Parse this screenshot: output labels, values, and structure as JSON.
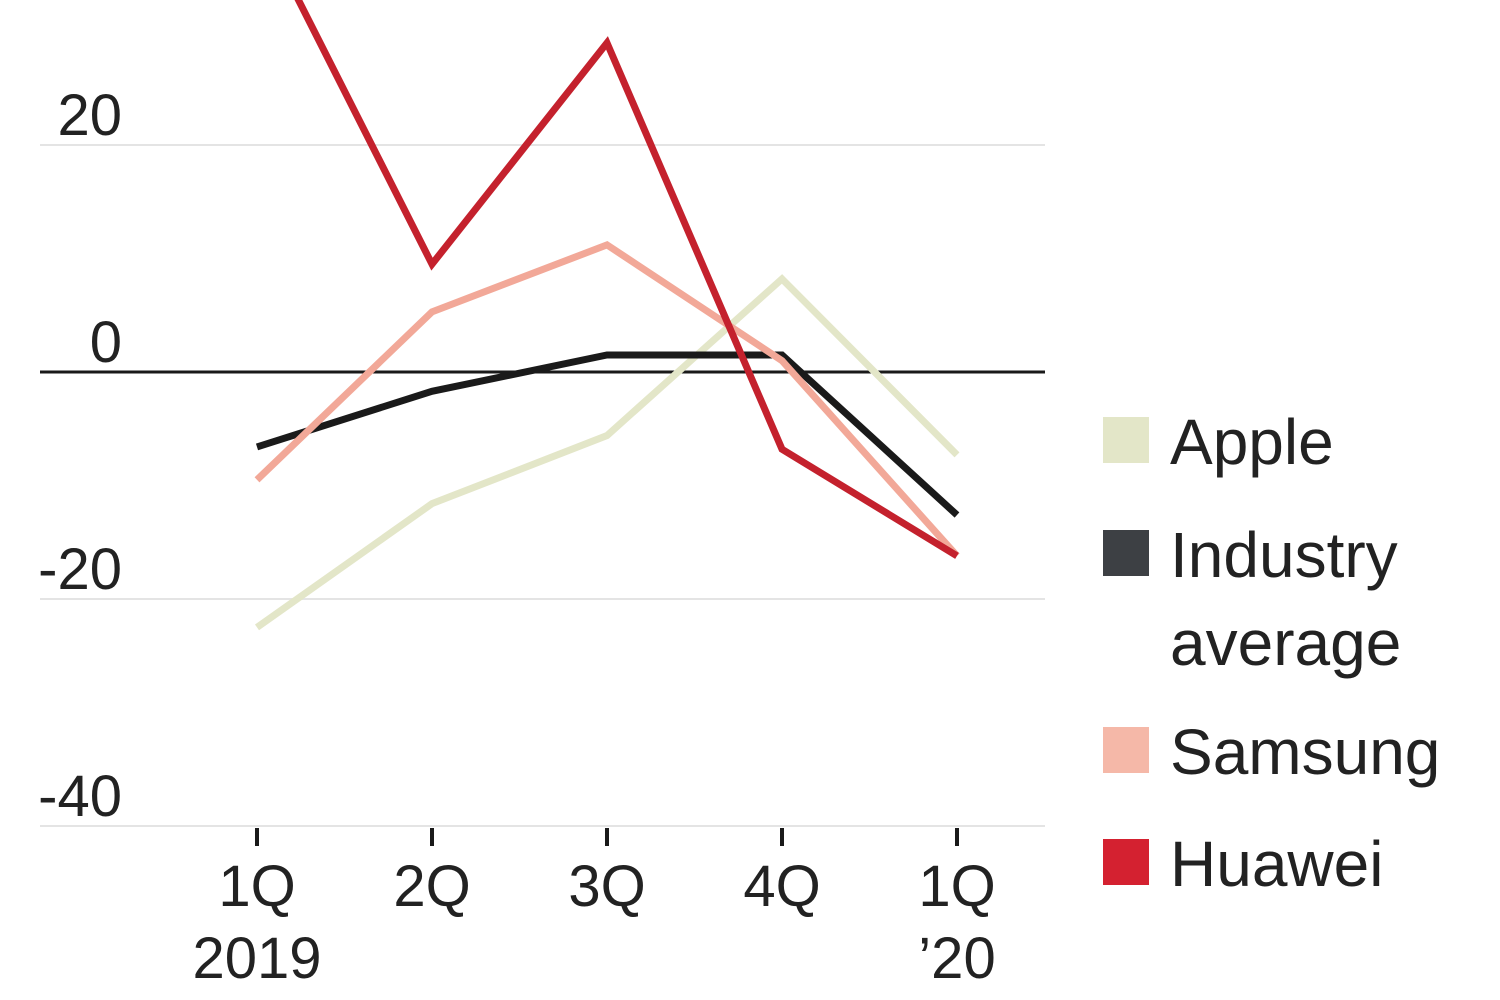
{
  "chart_data": {
    "type": "line",
    "x": [
      "1Q 2019",
      "2Q",
      "3Q",
      "4Q",
      "1Q '20"
    ],
    "x_tick_labels": [
      {
        "line1": "1Q",
        "line2": "2019"
      },
      {
        "line1": "2Q",
        "line2": ""
      },
      {
        "line1": "3Q",
        "line2": ""
      },
      {
        "line1": "4Q",
        "line2": ""
      },
      {
        "line1": "1Q",
        "line2": "’20"
      }
    ],
    "y_ticks": [
      20,
      0,
      -20,
      -40
    ],
    "y_tick_labels": [
      "20",
      "0",
      "-20",
      "-40"
    ],
    "ylim": [
      -40,
      33
    ],
    "grid": true,
    "zero_line": true,
    "legend_position": "right",
    "series": [
      {
        "name": "Apple",
        "legend_lines": [
          "Apple"
        ],
        "color": "#e3e6c8",
        "values": [
          -22.5,
          -11.6,
          -5.6,
          8.2,
          -7.3
        ]
      },
      {
        "name": "Industry average",
        "legend_lines": [
          "Industry",
          "average"
        ],
        "color": "#1a1a1a",
        "legend_color": "#3d4044",
        "values": [
          -6.6,
          -1.7,
          1.5,
          1.5,
          -12.6
        ]
      },
      {
        "name": "Samsung",
        "legend_lines": [
          "Samsung"
        ],
        "color": "#f2a898",
        "legend_color": "#f5b8a8",
        "values": [
          -9.5,
          5.3,
          11.2,
          1.0,
          -16.2
        ]
      },
      {
        "name": "Huawei",
        "legend_lines": [
          "Huawei"
        ],
        "color": "#c4212d",
        "legend_color": "#d42130",
        "values": [
          40,
          9.5,
          29.0,
          -6.8,
          -16.2
        ]
      }
    ]
  }
}
